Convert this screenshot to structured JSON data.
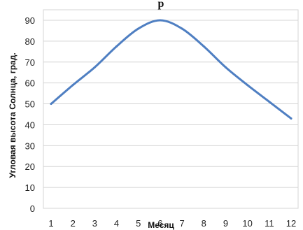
{
  "chart_data": {
    "type": "line",
    "title": "р",
    "xlabel": "Месяц",
    "ylabel": "Угловая высота Солнца, град.",
    "x": [
      1,
      2,
      3,
      4,
      5,
      6,
      7,
      8,
      9,
      10,
      11,
      12
    ],
    "x_tick_labels": [
      "1",
      "2",
      "3",
      "4",
      "5",
      "6",
      "7",
      "8",
      "9",
      "10",
      "11",
      "12"
    ],
    "y_tick_labels": [
      "0",
      "10",
      "20",
      "30",
      "40",
      "50",
      "60",
      "70",
      "80",
      "90"
    ],
    "ylim": [
      0,
      90
    ],
    "grid": true,
    "legend": "none",
    "series": [
      {
        "values": [
          50,
          59,
          67.5,
          77.5,
          86,
          90,
          86,
          77.5,
          67.5,
          59,
          51,
          43
        ],
        "color": "#4f7fc2"
      }
    ]
  }
}
